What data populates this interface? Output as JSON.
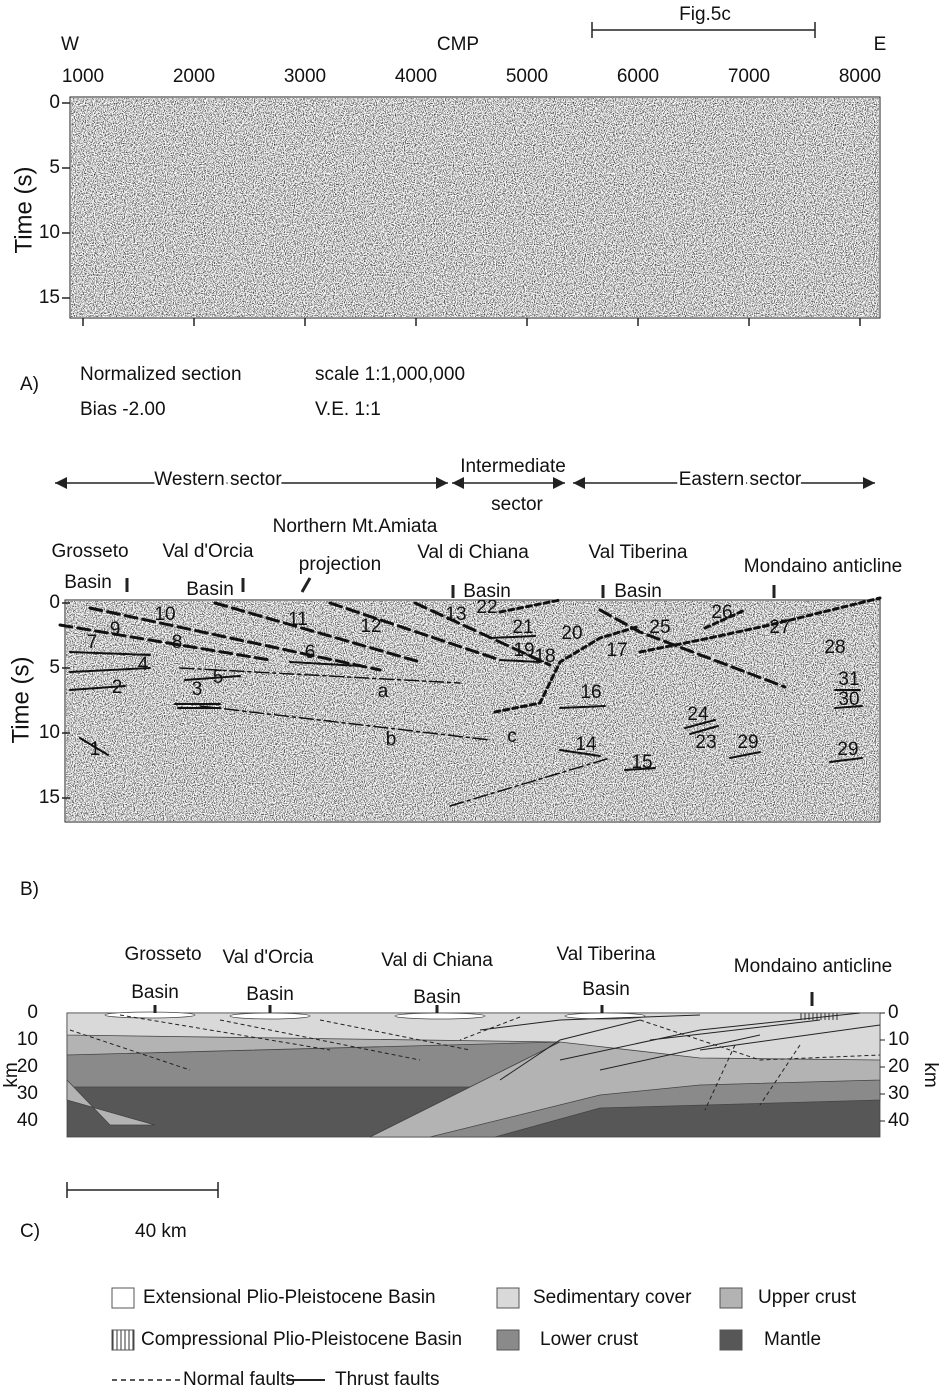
{
  "panel_a": {
    "label": "A)",
    "direction_west": "W",
    "direction_east": "E",
    "x_axis_title": "CMP",
    "inset_label": "Fig.5c",
    "x_ticks": [
      1000,
      2000,
      3000,
      4000,
      5000,
      6000,
      7000,
      8000
    ],
    "y_axis_title": "Time (s)",
    "y_ticks": [
      0,
      5,
      10,
      15
    ],
    "notes": [
      "Normalized  section",
      "scale 1:1,000,000",
      "Bias -2.00",
      "V.E. 1:1"
    ]
  },
  "panel_b": {
    "label": "B)",
    "sectors": [
      [
        "Western sector"
      ],
      [
        "Intermediate",
        "sector"
      ],
      [
        "Eastern sector"
      ]
    ],
    "places": [
      [
        "Grosseto",
        "Basin"
      ],
      [
        "Val d'Orcia",
        "Basin"
      ],
      [
        "Northern Mt.Amiata",
        "projection"
      ],
      [
        "Val di Chiana",
        "Basin"
      ],
      [
        "Val Tiberina",
        "Basin"
      ],
      [
        "Mondaino anticline"
      ]
    ],
    "y_axis_title": "Time (s)",
    "y_ticks": [
      0,
      5,
      10,
      15
    ],
    "fault_labels": [
      "1",
      "2",
      "3",
      "4",
      "5",
      "6",
      "7",
      "8",
      "9",
      "10",
      "11",
      "12",
      "13",
      "14",
      "15",
      "16",
      "17",
      "18",
      "19",
      "20",
      "21",
      "22",
      "23",
      "24",
      "25",
      "26",
      "27",
      "28",
      "29",
      "29",
      "30",
      "31",
      "a",
      "b",
      "c"
    ]
  },
  "panel_c": {
    "label": "C)",
    "places": [
      [
        "Grosseto",
        "Basin"
      ],
      [
        "Val d'Orcia",
        "Basin"
      ],
      [
        "Val di Chiana",
        "Basin"
      ],
      [
        "Val Tiberina",
        "Basin"
      ],
      [
        "Mondaino anticline"
      ]
    ],
    "depth_unit": "km",
    "depth_ticks": [
      0,
      10,
      20,
      30,
      40
    ],
    "scale_bar": "40 km",
    "legend": [
      "Extensional Plio-Pleistocene Basin",
      "Compressional Plio-Pleistocene Basin",
      "Normal faults",
      "Thrust faults",
      "Sedimentary cover",
      "Upper crust",
      "Lower crust",
      "Mantle"
    ]
  }
}
